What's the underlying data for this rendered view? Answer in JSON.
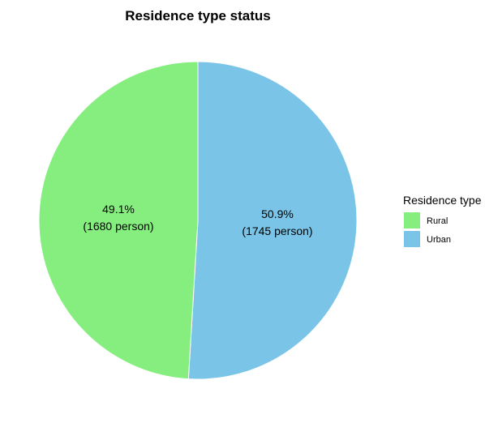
{
  "chart_data": {
    "type": "pie",
    "title": "Residence type status",
    "legend": {
      "title": "Residence type",
      "placement": "right"
    },
    "slices": [
      {
        "name": "Urban",
        "value": 1745,
        "percent_label": "50.9%",
        "count_label": "(1745 person)",
        "color": "#7AC5E7"
      },
      {
        "name": "Rural",
        "value": 1680,
        "percent_label": "49.1%",
        "count_label": "(1680 person)",
        "color": "#86EE7F"
      }
    ],
    "legend_entries": [
      {
        "name": "Rural",
        "color": "#86EE7F"
      },
      {
        "name": "Urban",
        "color": "#7AC5E7"
      }
    ]
  }
}
